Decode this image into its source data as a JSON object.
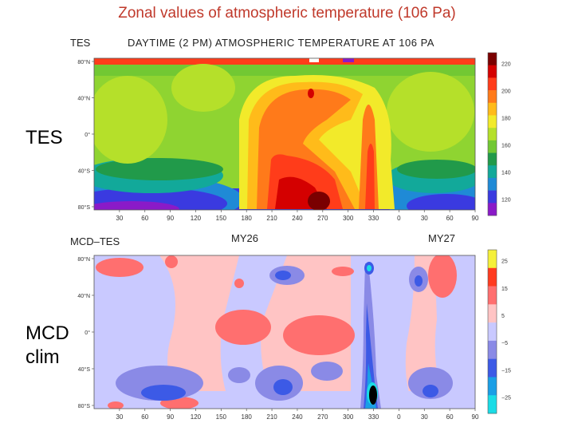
{
  "slide_title": "Zonal values of atmospheric  temperature (106 Pa)",
  "labels": {
    "tes": "TES",
    "mcd": [
      "MCD",
      "clim"
    ]
  },
  "chart_data": [
    {
      "type": "heatmap",
      "panel_tag": "TES",
      "title": "DAYTIME (2 PM) ATMOSPHERIC TEMPERATURE AT 106 PA",
      "x_ticks": [
        "30",
        "60",
        "90",
        "120",
        "150",
        "180",
        "210",
        "240",
        "270",
        "300",
        "330",
        "0",
        "30",
        "60",
        "90"
      ],
      "y_ticks": [
        "80°N",
        "40°N",
        "0°",
        "40°S",
        "80°S"
      ],
      "colorbar": {
        "ticks": [
          "220",
          "200",
          "180",
          "160",
          "140",
          "120"
        ],
        "colors": [
          "#7a0000",
          "#d40000",
          "#ff3c1a",
          "#ff7a1a",
          "#ffbb1a",
          "#f2ea2a",
          "#b5e02a",
          "#72c833",
          "#219a4a",
          "#12a99a",
          "#1f8ad6",
          "#3a3ae0",
          "#8a1ac8"
        ]
      }
    },
    {
      "type": "heatmap",
      "panel_tag": "MCD–TES",
      "year_labels": [
        "MY26",
        "MY27"
      ],
      "x_ticks": [
        "30",
        "60",
        "90",
        "120",
        "150",
        "180",
        "210",
        "240",
        "270",
        "300",
        "330",
        "0",
        "30",
        "60",
        "90"
      ],
      "y_ticks": [
        "80°N",
        "40°N",
        "0°",
        "40°S",
        "80°S"
      ],
      "colorbar": {
        "ticks": [
          "25",
          "15",
          "5",
          "−5",
          "−15",
          "−25"
        ],
        "colors": [
          "#f5f03a",
          "#ff3b1f",
          "#ff6f6f",
          "#ffc4c4",
          "#c9c9ff",
          "#8a8ae6",
          "#3c5ae6",
          "#1a9fe6",
          "#1adce6"
        ]
      }
    }
  ]
}
